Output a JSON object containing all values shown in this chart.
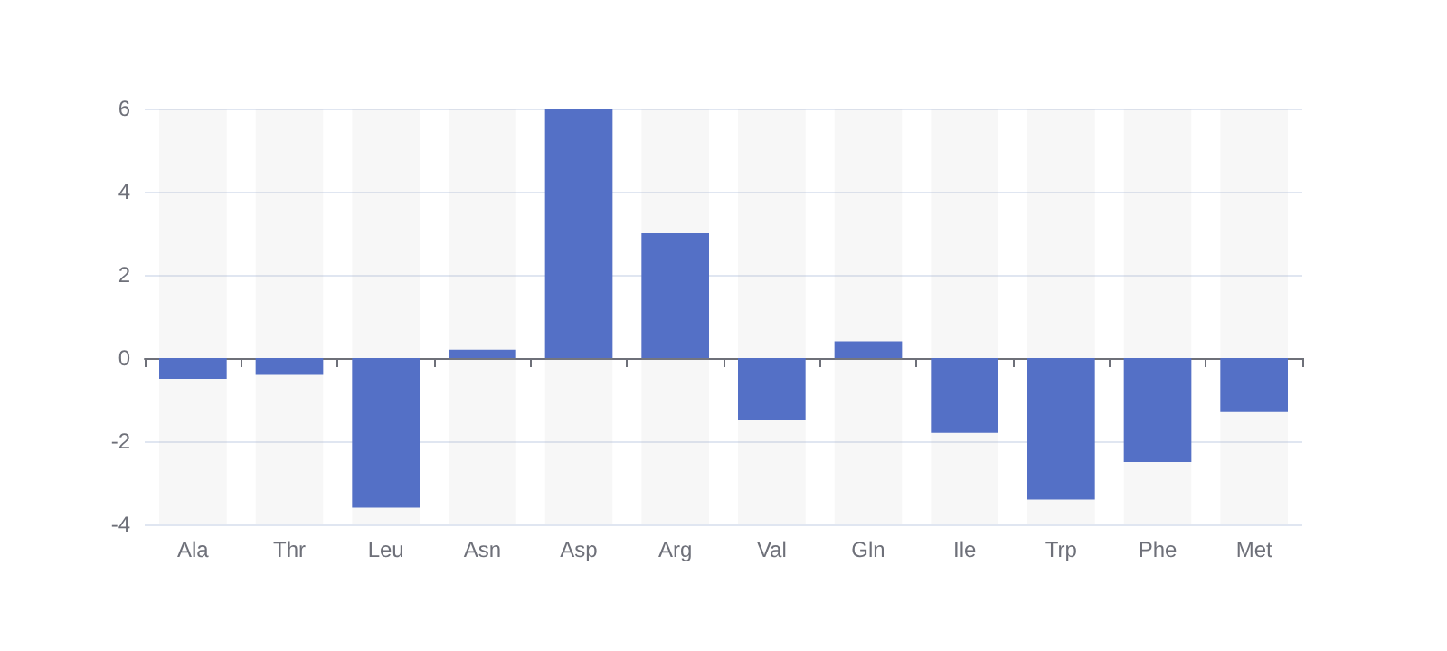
{
  "chart_data": {
    "type": "bar",
    "categories": [
      "Ala",
      "Thr",
      "Leu",
      "Asn",
      "Asp",
      "Arg",
      "Val",
      "Gln",
      "Ile",
      "Trp",
      "Phe",
      "Met"
    ],
    "series": [
      {
        "color": "#5470c6",
        "values": [
          -0.5,
          -0.4,
          -3.6,
          0.2,
          6,
          3,
          -1.5,
          0.4,
          -1.8,
          -3.4,
          -2.5,
          -1.3
        ]
      }
    ],
    "ylim": [
      -4,
      6
    ],
    "yticks": [
      -4,
      -2,
      0,
      2,
      4,
      6
    ],
    "grid": "y"
  }
}
